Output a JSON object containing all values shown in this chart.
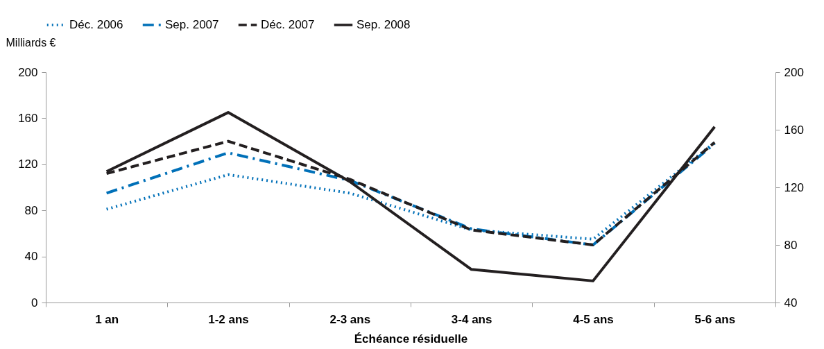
{
  "chart_data": {
    "type": "line",
    "xlabel": "Échéance résiduelle",
    "ylabel": "Milliards €",
    "categories": [
      "1 an",
      "1-2 ans",
      "2-3 ans",
      "3-4 ans",
      "4-5 ans",
      "5-6 ans"
    ],
    "series": [
      {
        "name": "Déc. 2006",
        "color": "#0070b8",
        "line_style": "dotted",
        "values": [
          81,
          111,
          95,
          63,
          55,
          139
        ]
      },
      {
        "name": "Sep. 2007",
        "color": "#0070b8",
        "line_style": "dashdot",
        "values": [
          95,
          130,
          106,
          64,
          50,
          138
        ]
      },
      {
        "name": "Déc. 2007",
        "color": "#231f20",
        "line_style": "dashed",
        "values": [
          112,
          140,
          107,
          63,
          50,
          139
        ]
      },
      {
        "name": "Sep. 2008",
        "color": "#231f20",
        "line_style": "solid",
        "axis": "y2",
        "values": [
          131,
          172,
          124,
          63,
          55,
          162
        ]
      }
    ],
    "ylim": [
      0,
      200
    ],
    "yticks": [
      0,
      40,
      80,
      120,
      160,
      200
    ],
    "y2lim": [
      40,
      200
    ],
    "y2ticks": [
      40,
      80,
      120,
      160,
      200
    ],
    "grid": false,
    "legend": "top"
  }
}
